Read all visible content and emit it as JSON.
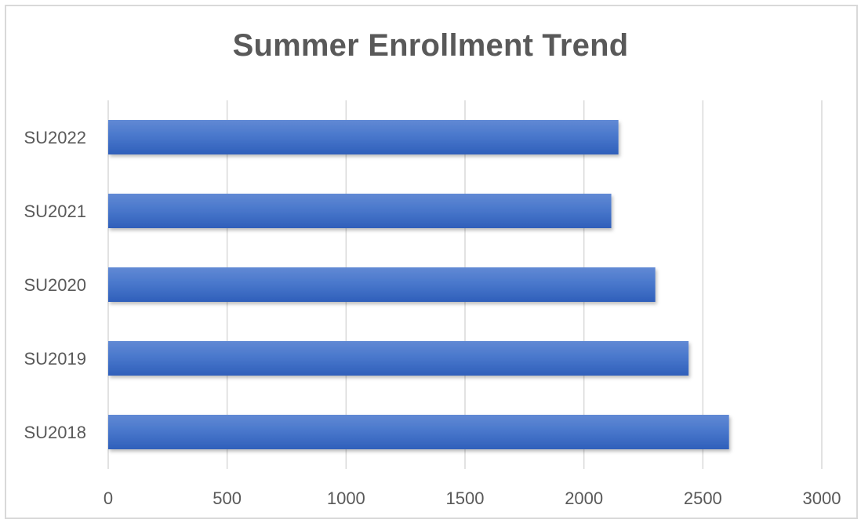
{
  "chart_data": {
    "type": "bar",
    "orientation": "horizontal",
    "title": "Summer Enrollment Trend",
    "categories": [
      "SU2018",
      "SU2019",
      "SU2020",
      "SU2021",
      "SU2022"
    ],
    "values": [
      2610,
      2440,
      2300,
      2115,
      2145
    ],
    "xlim": [
      0,
      3000
    ],
    "xticks": [
      0,
      500,
      1000,
      1500,
      2000,
      2500,
      3000
    ],
    "grid": true,
    "legend": "none",
    "bar_color": "#4472c4"
  }
}
